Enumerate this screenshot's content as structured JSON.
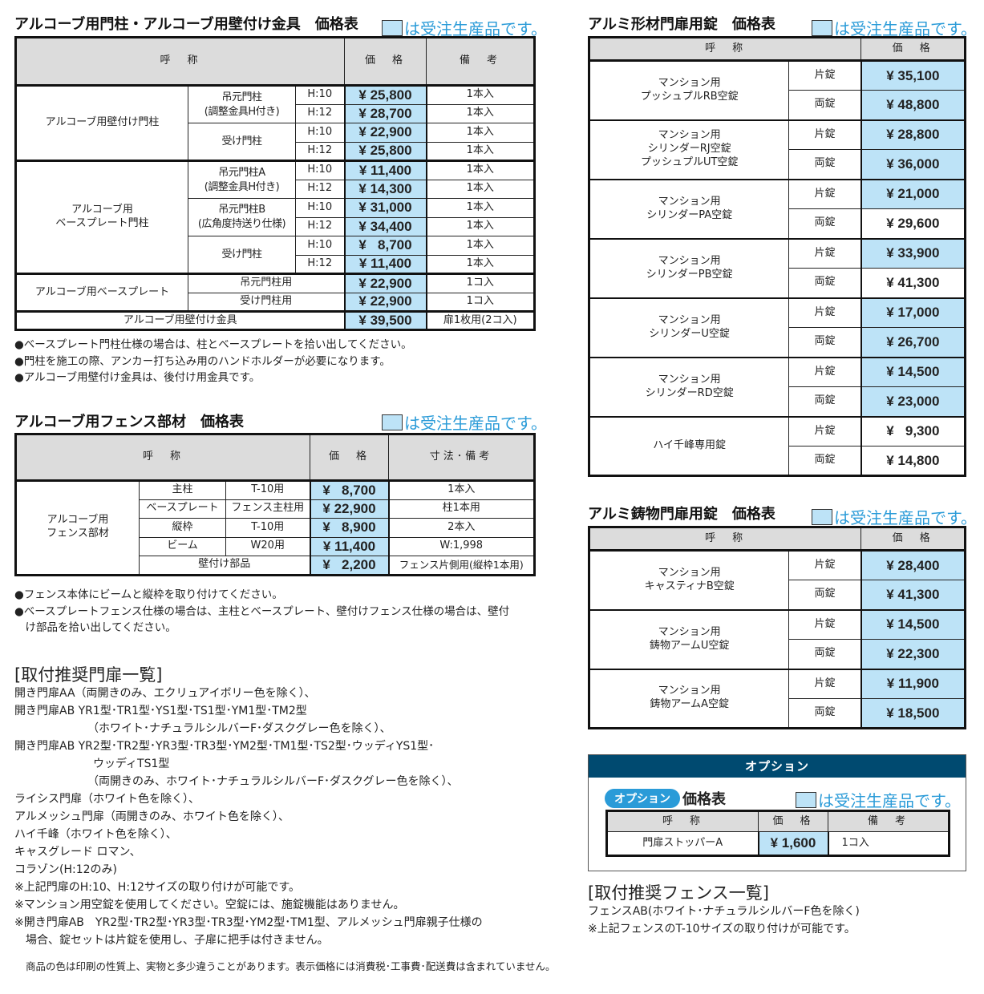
{
  "legend_text": "は受注生産品です。",
  "colors": {
    "made_to_order": "#bde3f7",
    "option_header": "#004a70",
    "legend_text": "#2a9bd8"
  },
  "t1": {
    "title": "アルコーブ用門柱・アルコーブ用壁付け金具　価格表",
    "headers": [
      "呼　称",
      "価　格",
      "備　考"
    ],
    "groups": [
      {
        "name": "アルコーブ用壁付け門柱",
        "items": [
          {
            "name": "吊元門柱\n(調整金具H付き)",
            "variants": [
              {
                "size": "H:10",
                "price": "¥ 25,800",
                "note": "1本入"
              },
              {
                "size": "H:12",
                "price": "¥ 28,700",
                "note": "1本入"
              }
            ]
          },
          {
            "name": "受け門柱",
            "variants": [
              {
                "size": "H:10",
                "price": "¥ 22,900",
                "note": "1本入"
              },
              {
                "size": "H:12",
                "price": "¥ 25,800",
                "note": "1本入"
              }
            ]
          }
        ]
      },
      {
        "name": "アルコーブ用\nベースプレート門柱",
        "items": [
          {
            "name": "吊元門柱A\n(調整金具H付き)",
            "variants": [
              {
                "size": "H:10",
                "price": "¥ 11,400",
                "note": "1本入"
              },
              {
                "size": "H:12",
                "price": "¥ 14,300",
                "note": "1本入"
              }
            ]
          },
          {
            "name": "吊元門柱B\n(広角度持送り仕様)",
            "variants": [
              {
                "size": "H:10",
                "price": "¥ 31,000",
                "note": "1本入"
              },
              {
                "size": "H:12",
                "price": "¥ 34,400",
                "note": "1本入"
              }
            ]
          },
          {
            "name": "受け門柱",
            "variants": [
              {
                "size": "H:10",
                "price": "¥   8,700",
                "note": "1本入"
              },
              {
                "size": "H:12",
                "price": "¥ 11,400",
                "note": "1本入"
              }
            ]
          }
        ]
      },
      {
        "name": "アルコーブ用ベースプレート",
        "items": [
          {
            "name": "吊元門柱用",
            "price": "¥ 22,900",
            "note": "1コ入"
          },
          {
            "name": "受け門柱用",
            "price": "¥ 22,900",
            "note": "1コ入"
          }
        ]
      },
      {
        "name": "アルコーブ用壁付け金具",
        "price": "¥ 39,500",
        "note": "扉1枚用(2コ入)"
      }
    ],
    "notes": "●ベースプレート門柱仕様の場合は、柱とベースプレートを拾い出してください。\n●門柱を施工の際、アンカー打ち込み用のハンドホルダーが必要になります。\n●アルコーブ用壁付け金具は、後付け用金具です。"
  },
  "t2": {
    "title": "アルコーブ用フェンス部材　価格表",
    "headers": [
      "呼　称",
      "価　格",
      "寸法･備考"
    ],
    "group": "アルコーブ用\nフェンス部材",
    "rows": [
      {
        "part": "主柱",
        "spec": "T-10用",
        "price": "¥   8,700",
        "note": "1本入"
      },
      {
        "part": "ベースプレート",
        "spec": "フェンス主柱用",
        "price": "¥ 22,900",
        "note": "柱1本用"
      },
      {
        "part": "縦枠",
        "spec": "T-10用",
        "price": "¥   8,900",
        "note": "2本入"
      },
      {
        "part": "ビーム",
        "spec": "W20用",
        "price": "¥ 11,400",
        "note": "W:1,998"
      },
      {
        "part": "壁付け部品",
        "price": "¥   2,200",
        "note": "フェンス片側用(縦枠1本用)"
      }
    ],
    "notes": "●フェンス本体にビームと縦枠を取り付けてください。\n●ベースプレートフェンス仕様の場合は、主柱とベースプレート、壁付けフェンス仕様の場合は、壁付\n　け部品を拾い出してください。"
  },
  "doors": {
    "heading": "[取付推奨門扉一覧]",
    "lines": [
      "開き門扉AA（両開きのみ、エクリュアイボリー色を除く）、",
      "開き門扉AB YR1型･TR1型･YS1型･TS1型･YM1型･TM2型",
      "　　　　　　　（ホワイト･ナチュラルシルバーF･ダスクグレー色を除く）、",
      "開き門扉AB YR2型･TR2型･YR3型･TR3型･YM2型･TM1型･TS2型･ウッディYS1型･",
      "　　　　　　　ウッディTS1型",
      "　　　　　　　（両開きのみ、ホワイト･ナチュラルシルバーF･ダスクグレー色を除く）、",
      "ライシス門扉（ホワイト色を除く）、",
      "アルメッシュ門扉（両開きのみ、ホワイト色を除く）、",
      "ハイ千峰（ホワイト色を除く）、",
      "キャスグレード ロマン、",
      "コラゾン(H:12のみ)",
      "※上記門扉のH:10、H:12サイズの取り付けが可能です。",
      "※マンション用空錠を使用してください。空錠には、施錠機能はありません。",
      "※開き門扉AB　YR2型･TR2型･YR3型･TR3型･YM2型･TM1型、アルメッシュ門扉親子仕様の",
      "　場合、錠セットは片錠を使用し、子扉に把手は付きません。"
    ],
    "footer": "商品の色は印刷の性質上、実物と多少違うことがあります。表示価格には消費税･工事費･配送費は含まれていません。"
  },
  "t3": {
    "title": "アルミ形材門扉用錠　価格表",
    "headers": [
      "呼　称",
      "価　格"
    ],
    "items": [
      {
        "name": "マンション用\nプッシュプルRB空錠",
        "locks": [
          {
            "type": "片錠",
            "price": "¥ 35,100",
            "made_to_order": true
          },
          {
            "type": "両錠",
            "price": "¥ 48,800",
            "made_to_order": true
          }
        ]
      },
      {
        "name": "マンション用\nシリンダーRJ空錠\nプッシュプルUT空錠",
        "locks": [
          {
            "type": "片錠",
            "price": "¥ 28,800",
            "made_to_order": true
          },
          {
            "type": "両錠",
            "price": "¥ 36,000",
            "made_to_order": true
          }
        ]
      },
      {
        "name": "マンション用\nシリンダーPA空錠",
        "locks": [
          {
            "type": "片錠",
            "price": "¥ 21,000",
            "made_to_order": true
          },
          {
            "type": "両錠",
            "price": "¥ 29,600",
            "made_to_order": false
          }
        ]
      },
      {
        "name": "マンション用\nシリンダーPB空錠",
        "locks": [
          {
            "type": "片錠",
            "price": "¥ 33,900",
            "made_to_order": true
          },
          {
            "type": "両錠",
            "price": "¥ 41,300",
            "made_to_order": false
          }
        ]
      },
      {
        "name": "マンション用\nシリンダーU空錠",
        "locks": [
          {
            "type": "片錠",
            "price": "¥ 17,000",
            "made_to_order": true
          },
          {
            "type": "両錠",
            "price": "¥ 26,700",
            "made_to_order": true
          }
        ]
      },
      {
        "name": "マンション用\nシリンダーRD空錠",
        "locks": [
          {
            "type": "片錠",
            "price": "¥ 14,500",
            "made_to_order": true
          },
          {
            "type": "両錠",
            "price": "¥ 23,000",
            "made_to_order": true
          }
        ]
      },
      {
        "name": "ハイ千峰専用錠",
        "locks": [
          {
            "type": "片錠",
            "price": "¥   9,300",
            "made_to_order": false
          },
          {
            "type": "両錠",
            "price": "¥ 14,800",
            "made_to_order": false
          }
        ]
      }
    ]
  },
  "t4": {
    "title": "アルミ鋳物門扉用錠　価格表",
    "headers": [
      "呼　称",
      "価　格"
    ],
    "items": [
      {
        "name": "マンション用\nキャスティナB空錠",
        "locks": [
          {
            "type": "片錠",
            "price": "¥ 28,400",
            "made_to_order": true
          },
          {
            "type": "両錠",
            "price": "¥ 41,300",
            "made_to_order": true
          }
        ]
      },
      {
        "name": "マンション用\n鋳物アームU空錠",
        "locks": [
          {
            "type": "片錠",
            "price": "¥ 14,500",
            "made_to_order": true
          },
          {
            "type": "両錠",
            "price": "¥ 22,300",
            "made_to_order": true
          }
        ]
      },
      {
        "name": "マンション用\n鋳物アームA空錠",
        "locks": [
          {
            "type": "片錠",
            "price": "¥ 11,900",
            "made_to_order": true
          },
          {
            "type": "両錠",
            "price": "¥ 18,500",
            "made_to_order": true
          }
        ]
      }
    ]
  },
  "option": {
    "bar": "オプション",
    "pill": "オプション",
    "title": "価格表",
    "headers": [
      "呼　称",
      "価　格",
      "備　考"
    ],
    "row": {
      "name": "門扉ストッパーA",
      "price": "¥ 1,600",
      "note": "1コ入"
    }
  },
  "fences": {
    "heading": "[取付推奨フェンス一覧]",
    "lines": [
      "フェンスAB(ホワイト･ナチュラルシルバーF色を除く)",
      "※上記フェンスのT-10サイズの取り付けが可能です。"
    ]
  }
}
